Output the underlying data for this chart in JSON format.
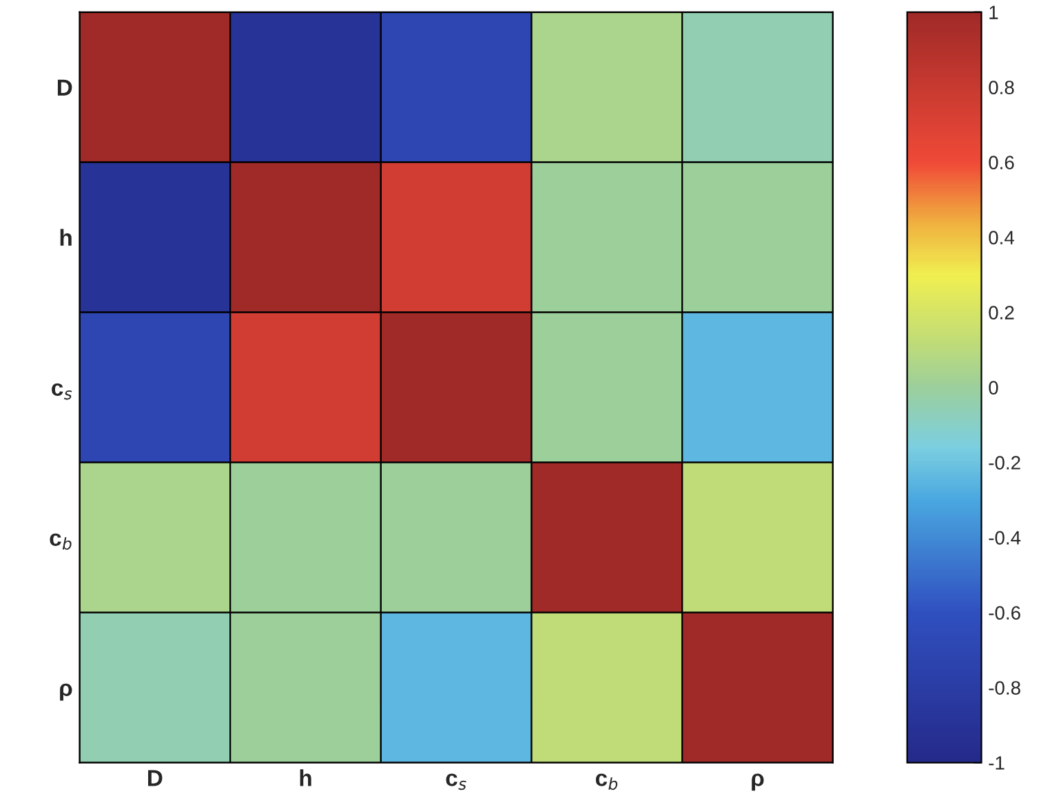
{
  "chart_data": {
    "type": "heatmap",
    "categories": [
      "D",
      "h",
      "c$_{s}$",
      "c$_{b}$",
      "ρ"
    ],
    "y_categories": [
      "D",
      "h",
      "c$_{s}$",
      "c$_{b}$",
      "ρ"
    ],
    "cells": [
      [
        1,
        -0.9,
        -0.7,
        0.05,
        -0.05
      ],
      [
        -0.9,
        1,
        0.75,
        0.0,
        0.0
      ],
      [
        -0.7,
        0.75,
        1,
        0.0,
        -0.25
      ],
      [
        0.05,
        0.0,
        0.0,
        1,
        0.12
      ],
      [
        -0.05,
        0.0,
        -0.25,
        0.12,
        1
      ]
    ],
    "clim": [
      -1,
      1
    ],
    "cticks": [
      -1,
      -0.8,
      -0.6,
      -0.4,
      -0.2,
      0,
      0.2,
      0.4,
      0.6,
      0.8,
      1
    ]
  }
}
